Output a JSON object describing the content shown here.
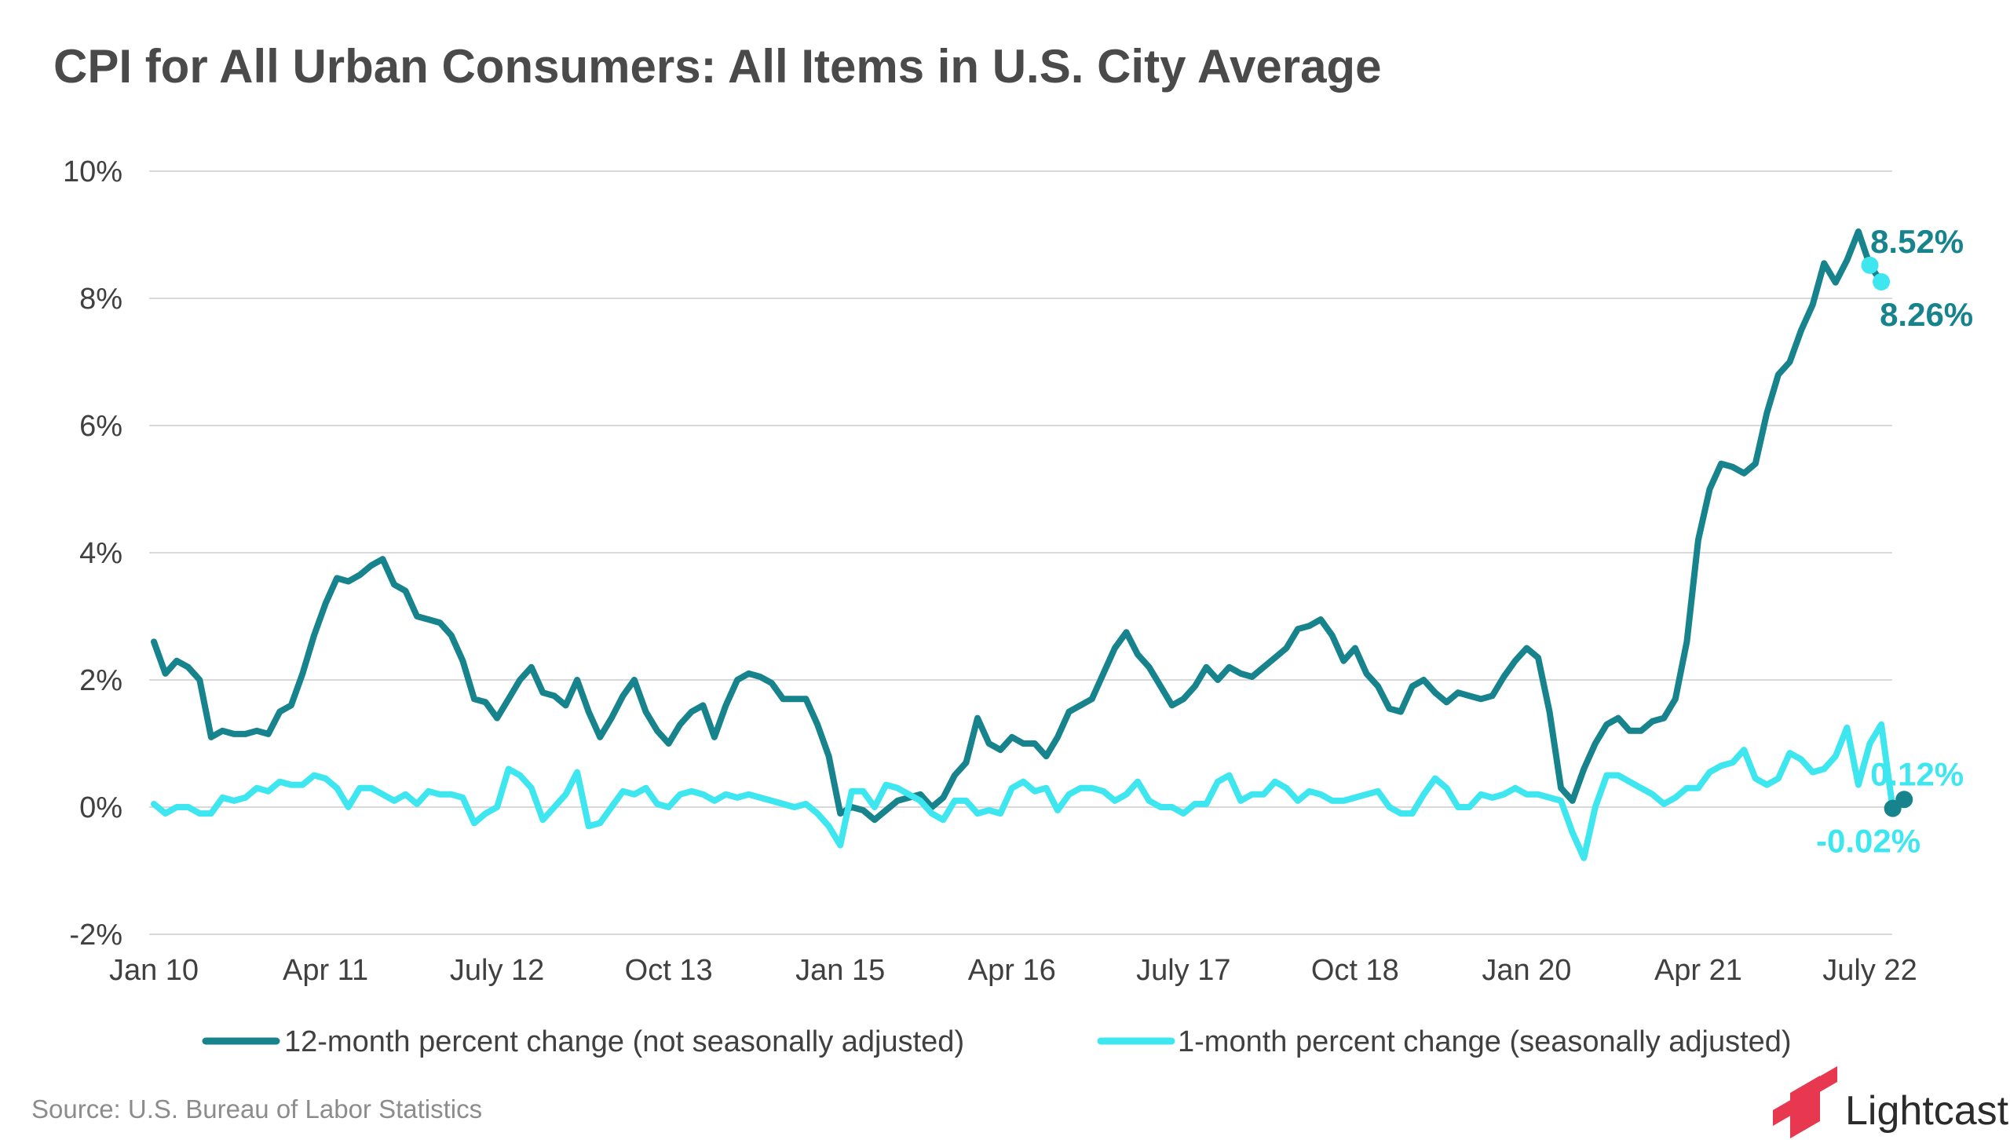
{
  "chart_data": {
    "type": "line",
    "title": "CPI for All Urban Consumers: All Items in U.S. City Average",
    "xlabel": "",
    "ylabel": "",
    "ylim": [
      -2,
      10
    ],
    "yticks": [
      {
        "value": 10,
        "label": "10%"
      },
      {
        "value": 8,
        "label": "8%"
      },
      {
        "value": 6,
        "label": "6%"
      },
      {
        "value": 4,
        "label": "4%"
      },
      {
        "value": 2,
        "label": "2%"
      },
      {
        "value": 0,
        "label": "0%"
      },
      {
        "value": -2,
        "label": "-2%"
      }
    ],
    "x_start": "Jan 10",
    "x_end": "Aug 22",
    "xticks": [
      {
        "index": 0,
        "label": "Jan 10"
      },
      {
        "index": 15,
        "label": "Apr 11"
      },
      {
        "index": 30,
        "label": "July 12"
      },
      {
        "index": 45,
        "label": "Oct 13"
      },
      {
        "index": 60,
        "label": "Jan 15"
      },
      {
        "index": 75,
        "label": "Apr 16"
      },
      {
        "index": 90,
        "label": "July 17"
      },
      {
        "index": 105,
        "label": "Oct 18"
      },
      {
        "index": 120,
        "label": "Jan 20"
      },
      {
        "index": 135,
        "label": "Apr 21"
      },
      {
        "index": 150,
        "label": "July 22"
      }
    ],
    "grid": true,
    "legend_position": "bottom",
    "series": [
      {
        "name": "12-month percent change (not seasonally adjusted)",
        "color": "#17838c",
        "values": [
          2.6,
          2.1,
          2.3,
          2.2,
          2.0,
          1.1,
          1.2,
          1.15,
          1.15,
          1.2,
          1.15,
          1.5,
          1.6,
          2.1,
          2.7,
          3.2,
          3.6,
          3.55,
          3.65,
          3.8,
          3.9,
          3.5,
          3.4,
          3.0,
          2.95,
          2.9,
          2.7,
          2.3,
          1.7,
          1.65,
          1.4,
          1.7,
          2.0,
          2.2,
          1.8,
          1.75,
          1.6,
          2.0,
          1.5,
          1.1,
          1.4,
          1.75,
          2.0,
          1.5,
          1.2,
          1.0,
          1.3,
          1.5,
          1.6,
          1.1,
          1.6,
          2.0,
          2.1,
          2.05,
          1.95,
          1.7,
          1.7,
          1.7,
          1.3,
          0.8,
          -0.1,
          0.0,
          -0.05,
          -0.2,
          -0.05,
          0.1,
          0.15,
          0.2,
          0.0,
          0.15,
          0.5,
          0.7,
          1.4,
          1.0,
          0.9,
          1.1,
          1.0,
          1.0,
          0.8,
          1.1,
          1.5,
          1.6,
          1.7,
          2.1,
          2.5,
          2.75,
          2.4,
          2.2,
          1.9,
          1.6,
          1.7,
          1.9,
          2.2,
          2.0,
          2.2,
          2.1,
          2.05,
          2.2,
          2.35,
          2.5,
          2.8,
          2.85,
          2.95,
          2.7,
          2.3,
          2.5,
          2.1,
          1.9,
          1.55,
          1.5,
          1.9,
          2.0,
          1.8,
          1.65,
          1.8,
          1.75,
          1.7,
          1.75,
          2.05,
          2.3,
          2.5,
          2.35,
          1.5,
          0.3,
          0.1,
          0.6,
          1.0,
          1.3,
          1.4,
          1.2,
          1.2,
          1.35,
          1.4,
          1.7,
          2.6,
          4.2,
          5.0,
          5.4,
          5.35,
          5.25,
          5.4,
          6.2,
          6.8,
          7.0,
          7.5,
          7.9,
          8.55,
          8.25,
          8.6,
          9.05,
          8.52,
          8.26
        ],
        "end_label": "8.52%",
        "end_label2": "8.26%"
      },
      {
        "name": "1-month percent change (seasonally adjusted)",
        "color": "#3ee6f0",
        "values": [
          0.05,
          -0.1,
          0.0,
          0.0,
          -0.1,
          -0.1,
          0.15,
          0.1,
          0.15,
          0.3,
          0.25,
          0.4,
          0.35,
          0.35,
          0.5,
          0.45,
          0.3,
          0.0,
          0.3,
          0.3,
          0.2,
          0.1,
          0.2,
          0.05,
          0.25,
          0.2,
          0.2,
          0.15,
          -0.25,
          -0.1,
          0.0,
          0.6,
          0.5,
          0.3,
          -0.2,
          0.0,
          0.2,
          0.55,
          -0.3,
          -0.25,
          0.0,
          0.25,
          0.2,
          0.3,
          0.05,
          0.0,
          0.2,
          0.25,
          0.2,
          0.1,
          0.2,
          0.15,
          0.2,
          0.15,
          0.1,
          0.05,
          0.0,
          0.05,
          -0.1,
          -0.3,
          -0.6,
          0.25,
          0.25,
          0.0,
          0.35,
          0.3,
          0.2,
          0.1,
          -0.1,
          -0.2,
          0.1,
          0.1,
          -0.1,
          -0.05,
          -0.1,
          0.3,
          0.4,
          0.25,
          0.3,
          -0.05,
          0.2,
          0.3,
          0.3,
          0.25,
          0.1,
          0.2,
          0.4,
          0.1,
          0.0,
          0.0,
          -0.1,
          0.05,
          0.05,
          0.4,
          0.5,
          0.1,
          0.2,
          0.2,
          0.4,
          0.3,
          0.1,
          0.25,
          0.2,
          0.1,
          0.1,
          0.15,
          0.2,
          0.25,
          0.0,
          -0.1,
          -0.1,
          0.2,
          0.45,
          0.3,
          0.0,
          0.0,
          0.2,
          0.15,
          0.2,
          0.3,
          0.2,
          0.2,
          0.15,
          0.1,
          -0.4,
          -0.8,
          0.0,
          0.5,
          0.5,
          0.4,
          0.3,
          0.2,
          0.05,
          0.15,
          0.3,
          0.3,
          0.55,
          0.65,
          0.7,
          0.9,
          0.45,
          0.35,
          0.45,
          0.85,
          0.75,
          0.55,
          0.6,
          0.8,
          1.25,
          0.35,
          1.0,
          1.3,
          -0.02,
          0.12
        ],
        "end_label": "0.12%",
        "end_label2": "-0.02%"
      }
    ],
    "source": "Source:  U.S. Bureau of Labor Statistics"
  },
  "brand": {
    "name": "Lightcast",
    "logo_color": "#e8384f"
  }
}
